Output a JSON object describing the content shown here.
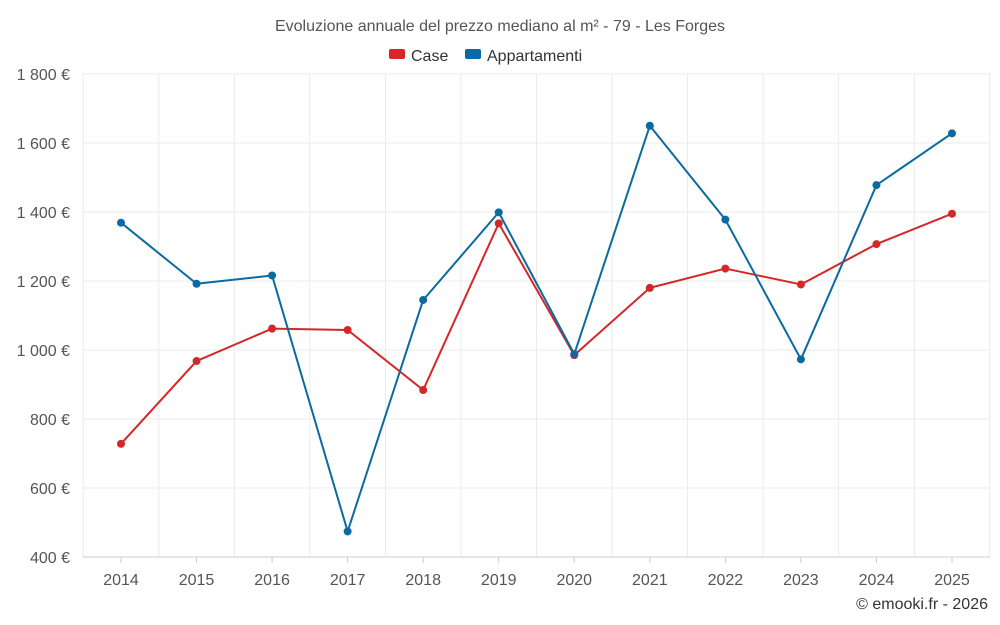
{
  "chart_data": {
    "type": "line",
    "title": "Evoluzione annuale del prezzo mediano al m² - 79 - Les Forges",
    "categories": [
      "2014",
      "2015",
      "2016",
      "2017",
      "2018",
      "2019",
      "2020",
      "2021",
      "2022",
      "2023",
      "2024",
      "2025"
    ],
    "y_tick_values": [
      400,
      600,
      800,
      1000,
      1200,
      1400,
      1600,
      1800
    ],
    "y_tick_labels": [
      "400 €",
      "600 €",
      "800 €",
      "1 000 €",
      "1 200 €",
      "1 400 €",
      "1 600 €",
      "1 800 €"
    ],
    "ylim": [
      400,
      1800
    ],
    "xlabel": "",
    "ylabel": "",
    "grid": true,
    "legend_position": "top-center",
    "series": [
      {
        "name": "Case",
        "color": "#d62728",
        "values": [
          728,
          968,
          1062,
          1058,
          884,
          1367,
          985,
          1180,
          1236,
          1190,
          1307,
          1395
        ]
      },
      {
        "name": "Appartamenti",
        "color": "#0a6aa1",
        "values": [
          1369,
          1192,
          1216,
          474,
          1145,
          1399,
          988,
          1650,
          1378,
          973,
          1478,
          1628
        ]
      }
    ],
    "credit": "© emooki.fr - 2026"
  }
}
